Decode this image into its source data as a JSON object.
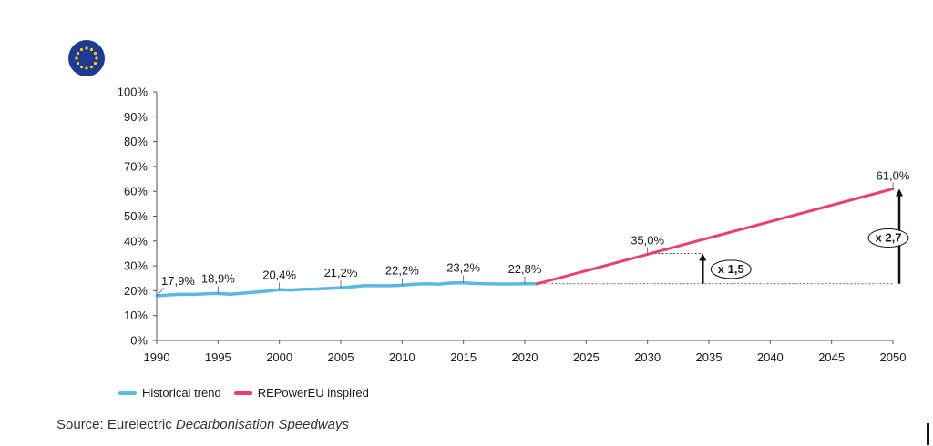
{
  "flag_icon": "eu-flag-icon",
  "colors": {
    "historical": "#5bb8e0",
    "projection": "#e8416f",
    "axis": "#555555"
  },
  "legend": [
    "Historical trend",
    "REPowerEU inspired"
  ],
  "source": {
    "prefix": "Source: Eurelectric ",
    "title": "Decarbonisation Speedways"
  },
  "chart_data": {
    "type": "line",
    "xlim": [
      1990,
      2050
    ],
    "ylim": [
      0,
      100
    ],
    "x_ticks": [
      1990,
      1995,
      2000,
      2005,
      2010,
      2015,
      2020,
      2025,
      2030,
      2035,
      2040,
      2045,
      2050
    ],
    "y_ticks": [
      "0%",
      "10%",
      "20%",
      "30%",
      "40%",
      "50%",
      "60%",
      "70%",
      "80%",
      "90%",
      "100%"
    ],
    "series": [
      {
        "name": "Historical trend",
        "color": "#5bb8e0",
        "x": [
          1990,
          1991,
          1992,
          1993,
          1994,
          1995,
          1996,
          1997,
          1998,
          1999,
          2000,
          2001,
          2002,
          2003,
          2004,
          2005,
          2006,
          2007,
          2008,
          2009,
          2010,
          2011,
          2012,
          2013,
          2014,
          2015,
          2016,
          2017,
          2018,
          2019,
          2020,
          2021
        ],
        "y": [
          17.9,
          18.3,
          18.6,
          18.5,
          18.8,
          18.9,
          18.6,
          19.0,
          19.4,
          19.8,
          20.4,
          20.3,
          20.6,
          20.7,
          20.9,
          21.2,
          21.6,
          22.1,
          22.0,
          22.0,
          22.2,
          22.6,
          22.8,
          22.6,
          23.1,
          23.2,
          22.9,
          22.8,
          22.7,
          22.7,
          22.8,
          22.8
        ]
      },
      {
        "name": "REPowerEU inspired",
        "color": "#e8416f",
        "x": [
          2021,
          2050
        ],
        "y": [
          22.8,
          61.0
        ]
      }
    ],
    "data_labels": [
      {
        "x": 1990,
        "y": 17.9,
        "text": "17,9%"
      },
      {
        "x": 1995,
        "y": 18.9,
        "text": "18,9%"
      },
      {
        "x": 2000,
        "y": 20.4,
        "text": "20,4%"
      },
      {
        "x": 2005,
        "y": 21.2,
        "text": "21,2%"
      },
      {
        "x": 2010,
        "y": 22.2,
        "text": "22,2%"
      },
      {
        "x": 2015,
        "y": 23.2,
        "text": "23,2%"
      },
      {
        "x": 2020,
        "y": 22.8,
        "text": "22,8%"
      },
      {
        "x": 2030,
        "y": 35.0,
        "text": "35,0%"
      },
      {
        "x": 2050,
        "y": 61.0,
        "text": "61,0%"
      }
    ],
    "annotations": [
      {
        "text": "x 1,5",
        "x": 2034.5,
        "from": 22.8,
        "to": 35.0
      },
      {
        "text": "x 2,7",
        "x": 2050,
        "from": 22.8,
        "to": 61.0
      }
    ],
    "baseline": 22.8,
    "grid": false,
    "legend_position": "bottom-left"
  }
}
